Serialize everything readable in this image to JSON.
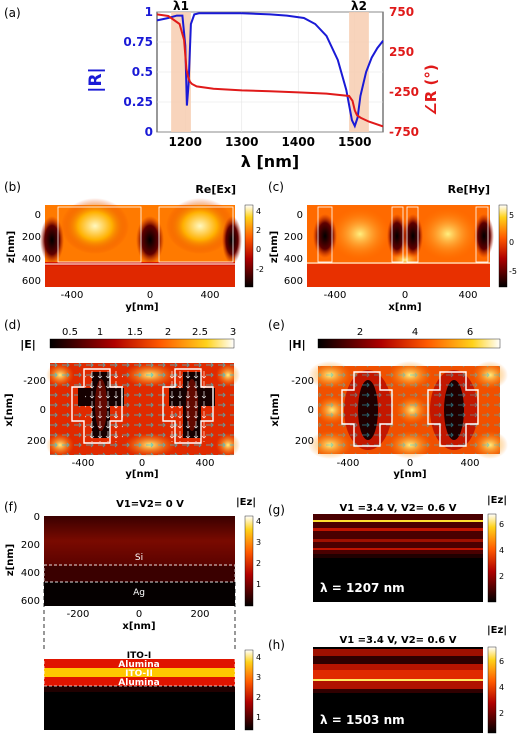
{
  "colors": {
    "magnitude": "#1a1ad6",
    "phase": "#e01a1a",
    "band": "#f7cdb0"
  },
  "panel_labels": [
    "(a)",
    "(b)",
    "(c)",
    "(d)",
    "(e)",
    "(f)",
    "(g)",
    "(h)"
  ],
  "chart_data": [
    {
      "type": "line",
      "panel": "(a)",
      "xlabel": "λ [nm]",
      "ylabel": "|R|",
      "y2label": "∠R (°)",
      "xlim": [
        1150,
        1550
      ],
      "ylim": [
        0,
        1
      ],
      "y2lim": [
        -750,
        750
      ],
      "xticks": [
        "1200",
        "1300",
        "1400",
        "1500"
      ],
      "yticks": [
        "0",
        "0.25",
        "0.5",
        "0.75",
        "1"
      ],
      "y2ticks": [
        "-750",
        "-250",
        "250",
        "750"
      ],
      "grid": true,
      "bands": [
        {
          "label": "λ1",
          "from": 1175,
          "to": 1210
        },
        {
          "label": "λ2",
          "from": 1490,
          "to": 1525
        }
      ],
      "series": [
        {
          "axis": "left",
          "x": [
            1150,
            1170,
            1185,
            1195,
            1200,
            1203,
            1206,
            1210,
            1216,
            1225,
            1260,
            1300,
            1350,
            1380,
            1410,
            1430,
            1450,
            1470,
            1485,
            1495,
            1500,
            1505,
            1510,
            1520,
            1530,
            1540,
            1550
          ],
          "values": [
            0.93,
            0.95,
            0.97,
            0.97,
            0.72,
            0.22,
            0.4,
            0.9,
            0.98,
            0.99,
            0.99,
            0.99,
            0.98,
            0.97,
            0.95,
            0.9,
            0.8,
            0.6,
            0.35,
            0.1,
            0.05,
            0.12,
            0.3,
            0.5,
            0.62,
            0.7,
            0.76
          ]
        },
        {
          "axis": "right",
          "x": [
            1150,
            1170,
            1190,
            1198,
            1202,
            1205,
            1208,
            1212,
            1220,
            1250,
            1300,
            1350,
            1400,
            1450,
            1490,
            1496,
            1500,
            1504,
            1510,
            1525,
            1550
          ],
          "values": [
            720,
            700,
            600,
            400,
            40,
            -60,
            -120,
            -150,
            -180,
            -210,
            -230,
            -240,
            -255,
            -270,
            -300,
            -360,
            -480,
            -540,
            -570,
            -620,
            -680
          ]
        }
      ]
    },
    {
      "type": "heatmap",
      "panel": "(b)",
      "title": "Re[Ex]",
      "xlabel": "y[nm]",
      "ylabel": "z[nm]",
      "xticks": [
        "-400",
        "0",
        "400"
      ],
      "yticks": [
        "0",
        "200",
        "400",
        "600"
      ],
      "colorbar_ticks": [
        "4",
        "2",
        "0",
        "-2"
      ],
      "colormap": "hot"
    },
    {
      "type": "heatmap",
      "panel": "(c)",
      "title": "Re[Hy]",
      "xlabel": "x[nm]",
      "ylabel": "z[nm]",
      "xticks": [
        "-400",
        "0",
        "400"
      ],
      "yticks": [
        "0",
        "200",
        "400",
        "600"
      ],
      "colorbar_ticks": [
        "5",
        "0",
        "-5"
      ],
      "colormap": "hot"
    },
    {
      "type": "heatmap",
      "panel": "(d)",
      "title": "|E|",
      "xlabel": "y[nm]",
      "ylabel": "x[nm]",
      "xticks": [
        "-400",
        "0",
        "400"
      ],
      "yticks": [
        "-200",
        "0",
        "200"
      ],
      "colorbar_ticks": [
        "0.5",
        "1",
        "1.5",
        "2",
        "2.5",
        "3"
      ],
      "colormap": "hot"
    },
    {
      "type": "heatmap",
      "panel": "(e)",
      "title": "|H|",
      "xlabel": "y[nm]",
      "ylabel": "x[nm]",
      "xticks": [
        "-400",
        "0",
        "400"
      ],
      "yticks": [
        "-200",
        "0",
        "200"
      ],
      "colorbar_ticks": [
        "2",
        "4",
        "6"
      ],
      "colormap": "hot"
    },
    {
      "type": "heatmap",
      "panel": "(f)",
      "title": "|Ez|",
      "subtitle": "V1=V2= 0 V",
      "xlabel": "x[nm]",
      "ylabel": "z[nm]",
      "xticks": [
        "-200",
        "0",
        "200"
      ],
      "yticks": [
        "0",
        "200",
        "400",
        "600"
      ],
      "colorbar_ticks": [
        "4",
        "3",
        "2",
        "1"
      ],
      "colormap": "hot",
      "region_labels": [
        "Si",
        "Ag"
      ],
      "inset_layers": [
        "ITO-I",
        "Alumina",
        "ITO-II",
        "Alumina"
      ],
      "inset_colorbar_ticks": [
        "4",
        "3",
        "2",
        "1"
      ]
    },
    {
      "type": "heatmap",
      "panel": "(g)",
      "title": "|Ez|",
      "subtitle": "V1 =3.4 V, V2= 0.6 V",
      "wavelength": "λ = 1207 nm",
      "colorbar_ticks": [
        "6",
        "4",
        "2"
      ],
      "colormap": "hot"
    },
    {
      "type": "heatmap",
      "panel": "(h)",
      "title": "|Ez|",
      "subtitle": "V1 =3.4 V, V2= 0.6 V",
      "wavelength": "λ = 1503 nm",
      "colorbar_ticks": [
        "6",
        "4",
        "2"
      ],
      "colormap": "hot"
    }
  ]
}
